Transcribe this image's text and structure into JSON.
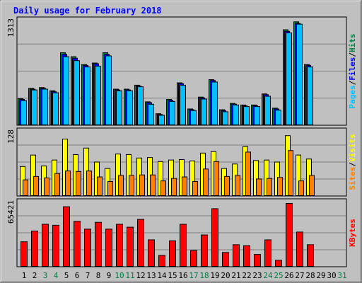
{
  "chart_data": {
    "type": "bar",
    "title": "Daily usage for February 2018",
    "days": [
      "1",
      "2",
      "3",
      "4",
      "5",
      "6",
      "7",
      "8",
      "9",
      "10",
      "11",
      "12",
      "13",
      "14",
      "15",
      "16",
      "17",
      "18",
      "19",
      "20",
      "21",
      "22",
      "23",
      "24",
      "25",
      "26",
      "27",
      "28",
      "29",
      "30",
      "31"
    ],
    "weekend_days": [
      "3",
      "4",
      "10",
      "11",
      "17",
      "18",
      "24",
      "25",
      "31"
    ],
    "panels": [
      {
        "id": "hits",
        "ymax_label": "1313",
        "ymax": 1313,
        "legend": [
          "Pages",
          "/",
          "Files",
          "/",
          "Hits"
        ],
        "legend_colors": [
          "#00c0ff",
          "#000000",
          "#0000ff",
          "#000000",
          "#008040"
        ],
        "series": [
          {
            "name": "Hits",
            "color": "#008040",
            "values": [
              340,
              470,
              480,
              440,
              920,
              870,
              770,
              790,
              920,
              460,
              460,
              510,
              300,
              150,
              330,
              540,
              210,
              360,
              580,
              200,
              280,
              260,
              260,
              400,
              220,
              1210,
              1310,
              770
            ]
          },
          {
            "name": "Files",
            "color": "#0000ff",
            "values": [
              330,
              460,
              470,
              430,
              900,
              850,
              760,
              780,
              900,
              450,
              450,
              500,
              290,
              140,
              320,
              530,
              200,
              350,
              570,
              190,
              270,
              250,
              250,
              390,
              210,
              1190,
              1290,
              760
            ]
          },
          {
            "name": "Pages",
            "color": "#00c0ff",
            "values": [
              315,
              450,
              460,
              415,
              870,
              820,
              740,
              750,
              880,
              440,
              440,
              490,
              270,
              130,
              305,
              510,
              190,
              335,
              550,
              175,
              260,
              240,
              240,
              370,
              195,
              1170,
              1280,
              740
            ]
          }
        ]
      },
      {
        "id": "sites",
        "ymax_label": "128",
        "ymax": 128,
        "legend": [
          "Sites",
          "/",
          "Visits"
        ],
        "legend_colors": [
          "#ff8000",
          "#000000",
          "#ffff00"
        ],
        "series": [
          {
            "name": "Visits",
            "color": "#ffff00",
            "values": [
              60,
              83,
              61,
              73,
              115,
              84,
              97,
              69,
              56,
              85,
              84,
              77,
              78,
              70,
              73,
              74,
              71,
              87,
              90,
              56,
              65,
              100,
              72,
              73,
              69,
              122,
              83,
              75
            ]
          },
          {
            "name": "Sites",
            "color": "#ff8000",
            "values": [
              33,
              40,
              37,
              46,
              51,
              50,
              51,
              39,
              30,
              42,
              42,
              43,
              43,
              31,
              36,
              39,
              30,
              55,
              70,
              40,
              42,
              89,
              35,
              36,
              38,
              92,
              31,
              42
            ]
          }
        ]
      },
      {
        "id": "kbytes",
        "ymax_label": "65421",
        "ymax": 65421,
        "legend": [
          "KBytes"
        ],
        "legend_colors": [
          "#ff0000"
        ],
        "series": [
          {
            "name": "KBytes",
            "color": "#ff0000",
            "values": [
              26000,
              37000,
              44000,
              43000,
              62000,
              47000,
              39000,
              46000,
              39000,
              44000,
              41000,
              49000,
              28000,
              12000,
              27000,
              44000,
              17000,
              33000,
              60000,
              15000,
              23000,
              22000,
              13000,
              28000,
              7000,
              65421,
              36000,
              23000
            ]
          }
        ]
      }
    ]
  }
}
